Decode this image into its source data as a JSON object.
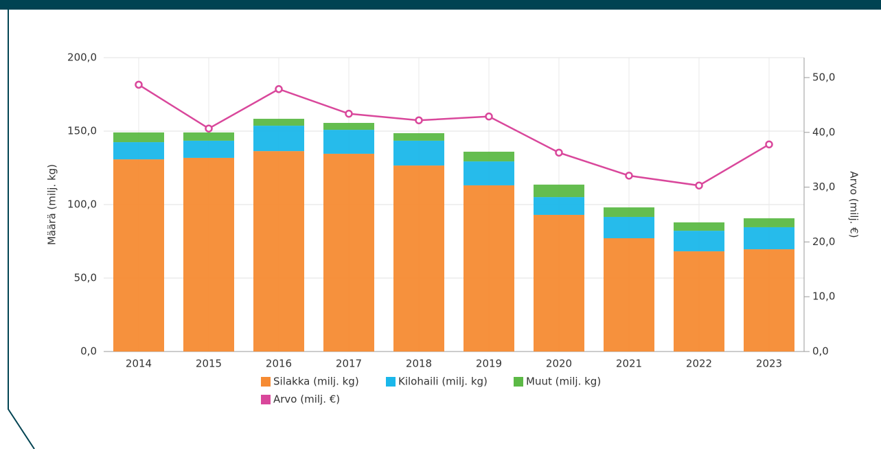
{
  "chart_data": {
    "type": "bar",
    "stacked": true,
    "categories": [
      "2014",
      "2015",
      "2016",
      "2017",
      "2018",
      "2019",
      "2020",
      "2021",
      "2022",
      "2023"
    ],
    "series": [
      {
        "name": "Silakka (milj. kg)",
        "color": "#f68b33",
        "values": [
          130.8,
          131.8,
          136.4,
          134.6,
          126.6,
          113.1,
          93.0,
          77.1,
          68.2,
          69.6
        ]
      },
      {
        "name": "Kilohaili (milj. kg)",
        "color": "#1ab7ea",
        "values": [
          11.7,
          11.7,
          17.3,
          16.3,
          16.9,
          16.3,
          12.1,
          14.5,
          14.0,
          15.0
        ]
      },
      {
        "name": "Muut (milj. kg)",
        "color": "#5cb946",
        "values": [
          6.6,
          5.6,
          4.7,
          4.7,
          5.1,
          6.6,
          8.5,
          6.5,
          5.7,
          6.1
        ]
      },
      {
        "name": "Arvo (milj. €)",
        "color": "#d9479b",
        "type": "line",
        "axis": "y2",
        "values": [
          48.7,
          40.7,
          47.9,
          43.4,
          42.2,
          42.9,
          36.3,
          32.1,
          30.3,
          37.8
        ]
      }
    ],
    "ylabel": "Määrä (milj. kg)",
    "y2label": "Arvo (milj. €)",
    "ylim": [
      0,
      200
    ],
    "yticks": [
      {
        "value": 0,
        "label": "0,0"
      },
      {
        "value": 50,
        "label": "50,0"
      },
      {
        "value": 100,
        "label": "100,0"
      },
      {
        "value": 150,
        "label": "150,0"
      },
      {
        "value": 200,
        "label": "200,0"
      }
    ],
    "y2lim": [
      0,
      50
    ],
    "y2ticks": [
      {
        "value": 0,
        "label": "0,0"
      },
      {
        "value": 10,
        "label": "10,0"
      },
      {
        "value": 20,
        "label": "20,0"
      },
      {
        "value": 30,
        "label": "30,0"
      },
      {
        "value": 40,
        "label": "40,0"
      },
      {
        "value": 50,
        "label": "50,0"
      }
    ],
    "grid": true,
    "legend": "bottom"
  }
}
